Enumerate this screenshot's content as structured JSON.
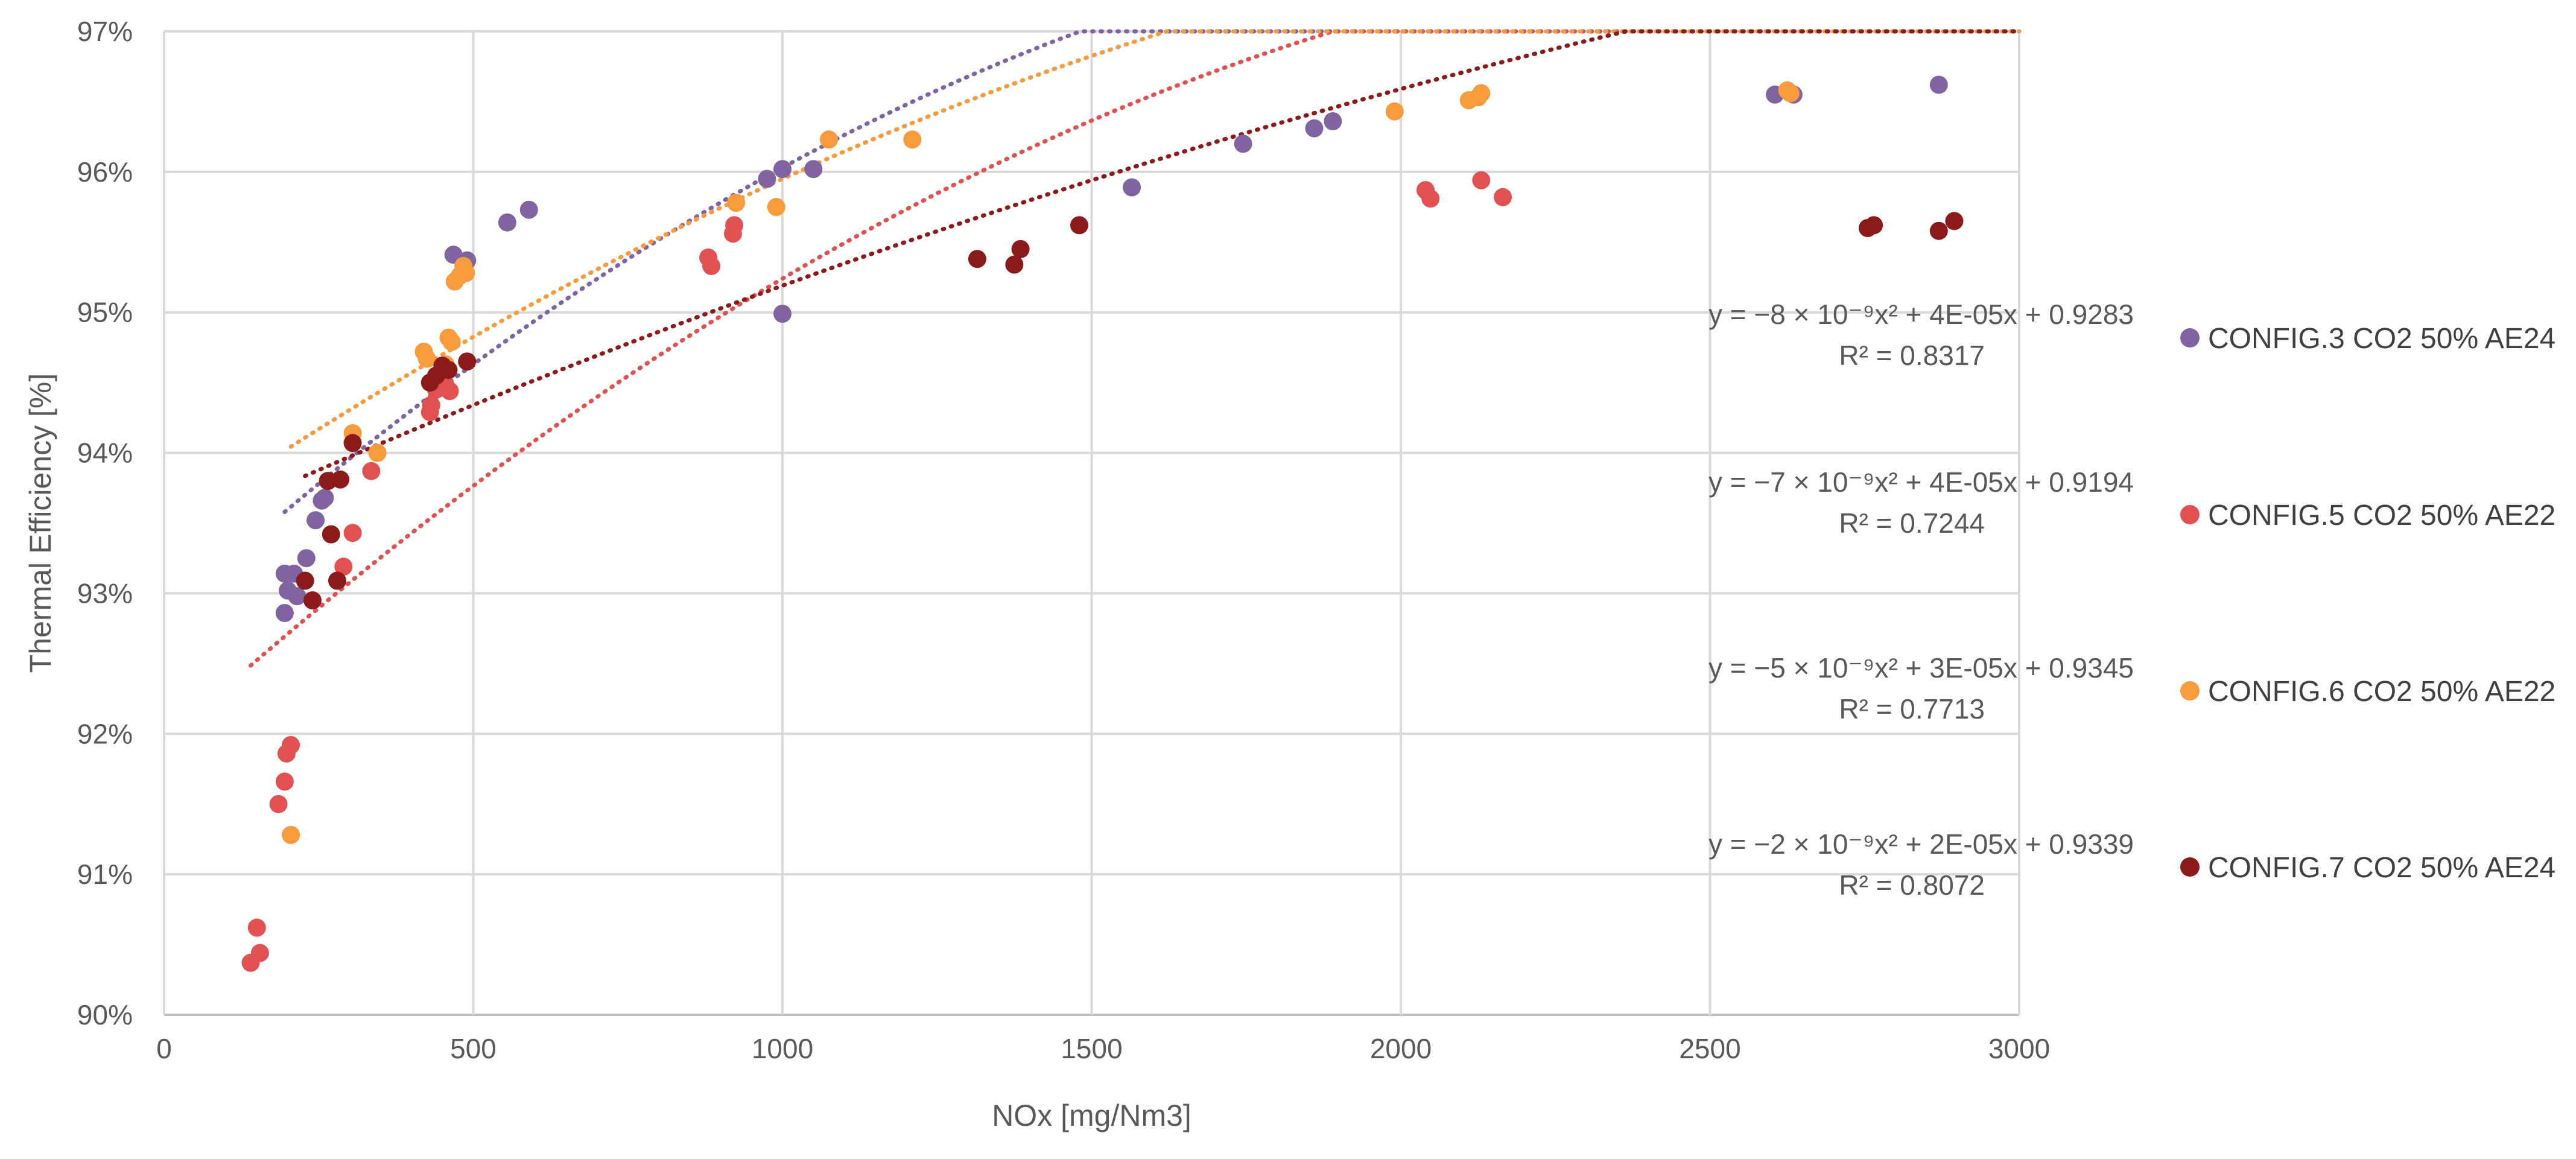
{
  "chart_data": {
    "type": "scatter",
    "title": "",
    "xlabel": "NOx [mg/Nm3]",
    "ylabel": "Thermal Efficiency  [%]",
    "xlim": [
      0,
      3000
    ],
    "ylim": [
      0.9,
      0.97
    ],
    "xticks": [
      "0",
      "500",
      "1000",
      "1500",
      "2000",
      "2500",
      "3000"
    ],
    "yticks": [
      "90%",
      "91%",
      "92%",
      "93%",
      "94%",
      "95%",
      "96%",
      "97%"
    ],
    "grid": true,
    "legend_position": "right",
    "series": [
      {
        "name": "CONFIG.3 CO2 50% AE24",
        "color": "#8064A2",
        "points": [
          [
            195,
            0.9314
          ],
          [
            200,
            0.9302
          ],
          [
            210,
            0.9314
          ],
          [
            195,
            0.9286
          ],
          [
            215,
            0.9298
          ],
          [
            230,
            0.9325
          ],
          [
            245,
            0.9352
          ],
          [
            255,
            0.9366
          ],
          [
            260,
            0.9368
          ],
          [
            468,
            0.9541
          ],
          [
            490,
            0.9537
          ],
          [
            555,
            0.9564
          ],
          [
            590,
            0.9573
          ],
          [
            975,
            0.9595
          ],
          [
            1000,
            0.9602
          ],
          [
            1050,
            0.9602
          ],
          [
            1000,
            0.9499
          ],
          [
            1565,
            0.9589
          ],
          [
            1745,
            0.962
          ],
          [
            1860,
            0.9631
          ],
          [
            1890,
            0.9636
          ],
          [
            2605,
            0.9655
          ],
          [
            2635,
            0.9655
          ],
          [
            2870,
            0.9662
          ]
        ],
        "trendline": {
          "equation": "y = −8 × 10⁻⁹x² + 4E-05x + 0.9283",
          "r2": "R² = 0.8317",
          "a": -8e-09,
          "b": 4e-05,
          "c": 0.9283,
          "x_range": [
            195,
            3000
          ]
        }
      },
      {
        "name": "CONFIG.5 CO2 50% AE22",
        "color": "#E15151",
        "points": [
          [
            140,
            0.9037
          ],
          [
            150,
            0.9062
          ],
          [
            155,
            0.9044
          ],
          [
            185,
            0.915
          ],
          [
            195,
            0.9166
          ],
          [
            198,
            0.9186
          ],
          [
            205,
            0.9192
          ],
          [
            290,
            0.9319
          ],
          [
            305,
            0.9343
          ],
          [
            335,
            0.9387
          ],
          [
            430,
            0.9429
          ],
          [
            432,
            0.9434
          ],
          [
            440,
            0.9445
          ],
          [
            455,
            0.9448
          ],
          [
            462,
            0.9444
          ],
          [
            880,
            0.9539
          ],
          [
            885,
            0.9533
          ],
          [
            920,
            0.9556
          ],
          [
            922,
            0.9562
          ],
          [
            2040,
            0.9587
          ],
          [
            2048,
            0.9581
          ],
          [
            2130,
            0.9594
          ],
          [
            2165,
            0.9582
          ]
        ],
        "trendline": {
          "equation": "y = −7 × 10⁻⁹x² + 4E-05x + 0.9194",
          "r2": "R² = 0.7244",
          "a": -7e-09,
          "b": 4e-05,
          "c": 0.9194,
          "x_range": [
            140,
            3000
          ]
        }
      },
      {
        "name": "CONFIG.6 CO2 50% AE22",
        "color": "#F79B3D",
        "points": [
          [
            205,
            0.9128
          ],
          [
            305,
            0.9414
          ],
          [
            345,
            0.94
          ],
          [
            420,
            0.9472
          ],
          [
            425,
            0.9467
          ],
          [
            455,
            0.9463
          ],
          [
            460,
            0.9482
          ],
          [
            465,
            0.9479
          ],
          [
            470,
            0.9522
          ],
          [
            478,
            0.9526
          ],
          [
            484,
            0.9533
          ],
          [
            488,
            0.9528
          ],
          [
            925,
            0.9578
          ],
          [
            990,
            0.9575
          ],
          [
            1075,
            0.9623
          ],
          [
            1210,
            0.9623
          ],
          [
            1990,
            0.9643
          ],
          [
            2110,
            0.9651
          ],
          [
            2125,
            0.9653
          ],
          [
            2130,
            0.9656
          ],
          [
            2625,
            0.9658
          ],
          [
            2630,
            0.9656
          ]
        ],
        "trendline": {
          "equation": "y = −5 × 10⁻⁹x² + 3E-05x + 0.9345",
          "r2": "R² = 0.7713",
          "a": -5e-09,
          "b": 3e-05,
          "c": 0.9345,
          "x_range": [
            205,
            3000
          ]
        }
      },
      {
        "name": "CONFIG.7 CO2 50% AE24",
        "color": "#8B1A1A",
        "points": [
          [
            228,
            0.9309
          ],
          [
            240,
            0.9295
          ],
          [
            265,
            0.938
          ],
          [
            270,
            0.9342
          ],
          [
            280,
            0.9309
          ],
          [
            285,
            0.9381
          ],
          [
            305,
            0.9407
          ],
          [
            430,
            0.945
          ],
          [
            440,
            0.9455
          ],
          [
            450,
            0.9462
          ],
          [
            460,
            0.9459
          ],
          [
            490,
            0.9465
          ],
          [
            1315,
            0.9538
          ],
          [
            1375,
            0.9534
          ],
          [
            1385,
            0.9545
          ],
          [
            1480,
            0.9562
          ],
          [
            2755,
            0.956
          ],
          [
            2765,
            0.9562
          ],
          [
            2870,
            0.9558
          ],
          [
            2895,
            0.9565
          ]
        ],
        "trendline": {
          "equation": "y = −2 × 10⁻⁹x² + 2E-05x + 0.9339",
          "r2": "R² = 0.8072",
          "a": -2e-09,
          "b": 2e-05,
          "c": 0.9339,
          "x_range": [
            228,
            3000
          ]
        }
      }
    ]
  }
}
